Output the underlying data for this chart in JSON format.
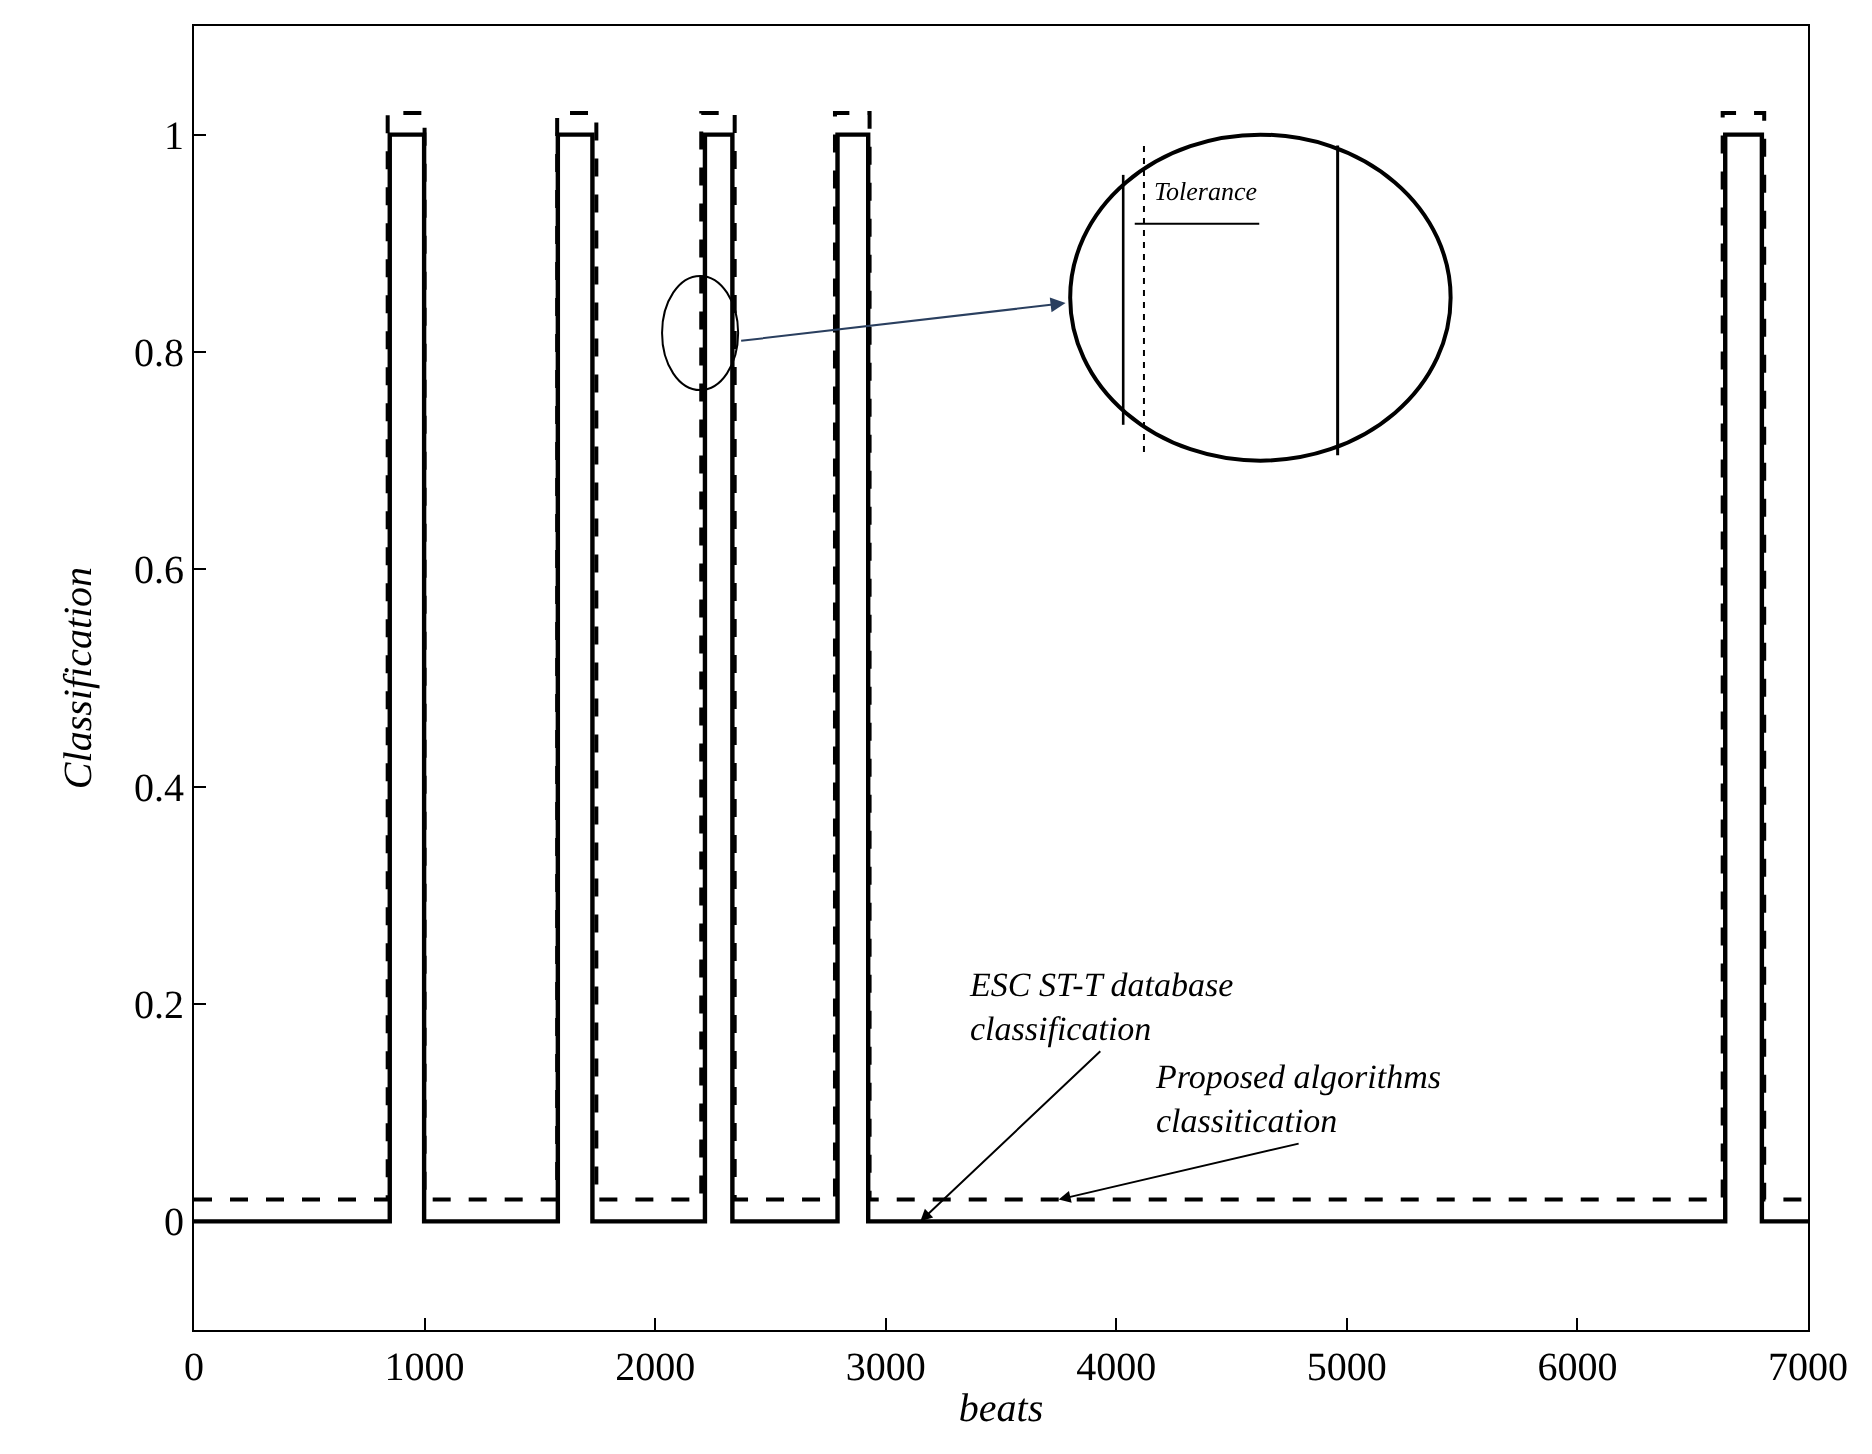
{
  "chart_data": {
    "type": "step",
    "xlabel": "beats",
    "ylabel": "Classification",
    "series": [
      {
        "name": "ESC ST-T database classification",
        "color": "#000000",
        "line_style": "solid",
        "x": [
          0,
          849,
          998,
          1578,
          1728,
          2216,
          2335,
          2791,
          2924,
          6641,
          6800,
          7000
        ],
        "values": [
          0,
          1,
          0,
          1,
          0,
          1,
          0,
          1,
          0,
          1,
          0,
          0
        ]
      },
      {
        "name": "Proposed algorithms classitication",
        "color": "#000000",
        "line_style": "dashed",
        "x": [
          0,
          840,
          1000,
          1575,
          1745,
          2200,
          2345,
          2780,
          2930,
          6630,
          6810,
          7000
        ],
        "values": [
          0.02,
          1.02,
          0.02,
          1.02,
          0.02,
          1.02,
          0.02,
          1.02,
          0.02,
          1.02,
          0.02,
          0.02
        ]
      }
    ],
    "annotations": [
      "Tolerance"
    ],
    "xlim": [
      0,
      7000
    ],
    "xticks": [
      0,
      1000,
      2000,
      3000,
      4000,
      5000,
      6000,
      7000
    ],
    "ylim": [
      -0.1,
      1.1
    ],
    "yticks": [
      0,
      0.2,
      0.4,
      0.6,
      0.8,
      1
    ],
    "legend": false
  }
}
